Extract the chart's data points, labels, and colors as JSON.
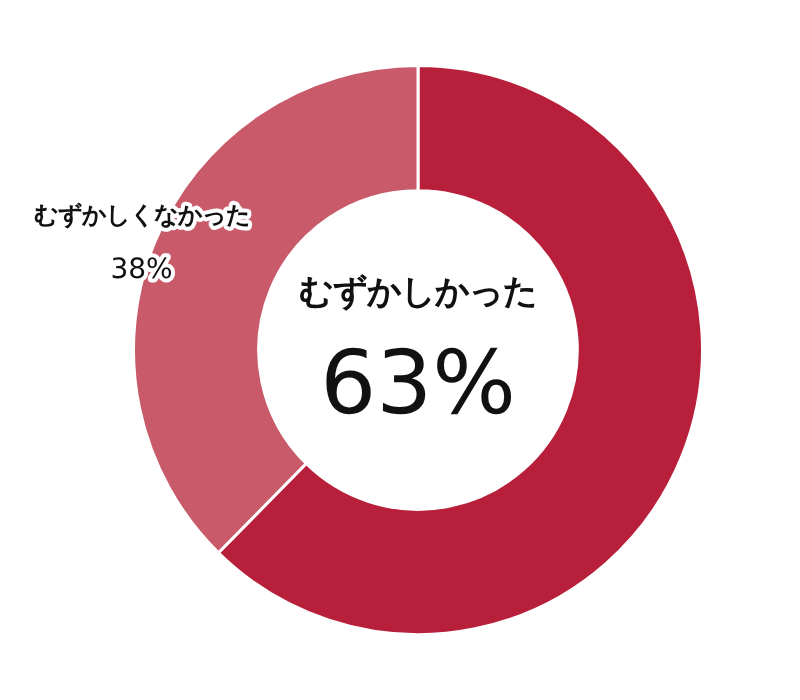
{
  "chart_data": {
    "type": "donut",
    "categories": [
      "むずかしかった",
      "むずかしくなかった"
    ],
    "values": [
      63,
      38
    ],
    "colors": [
      "#b81f3a",
      "#c85a6a"
    ],
    "value_labels": [
      "63%",
      "38%"
    ],
    "legend": false
  }
}
